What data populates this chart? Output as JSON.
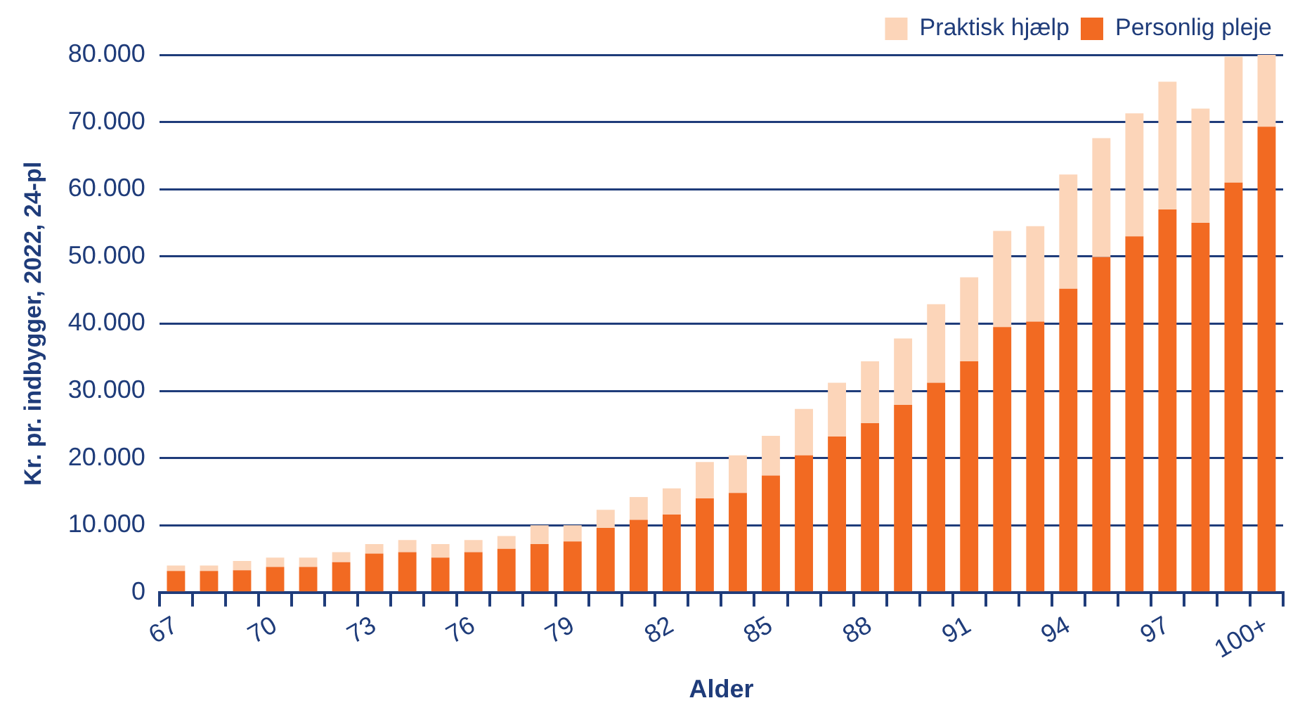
{
  "chart_data": {
    "type": "bar",
    "stacked": true,
    "xlabel": "Alder",
    "ylabel": "Kr. pr. indbygger, 2022, 24-pl",
    "categories": [
      "67",
      null,
      null,
      "70",
      null,
      null,
      "73",
      null,
      null,
      "76",
      null,
      null,
      "79",
      null,
      null,
      "82",
      null,
      null,
      "85",
      null,
      null,
      "88",
      null,
      null,
      "91",
      null,
      null,
      "94",
      null,
      null,
      "97",
      null,
      null,
      "100+"
    ],
    "series": [
      {
        "name": "Personlig pleje",
        "color": "#f26a22",
        "values": [
          3200,
          3200,
          3300,
          3800,
          3800,
          4500,
          5800,
          6000,
          5200,
          6000,
          6500,
          7200,
          7600,
          9600,
          10800,
          11600,
          14000,
          14800,
          17400,
          20400,
          23200,
          25200,
          27900,
          31200,
          34400,
          39500,
          40300,
          45200,
          49900,
          53000,
          57000,
          55000,
          61000,
          69300
        ]
      },
      {
        "name": "Praktisk hjælp",
        "color": "#fcd5b9",
        "values": [
          800,
          800,
          1400,
          1400,
          1400,
          1500,
          1400,
          1800,
          2000,
          1800,
          1900,
          2800,
          2400,
          2700,
          3400,
          3900,
          5400,
          5600,
          5900,
          6900,
          8000,
          9200,
          9900,
          11700,
          12500,
          14300,
          14200,
          17000,
          17700,
          18300,
          19000,
          17000,
          18700,
          10700
        ]
      }
    ],
    "ylim": [
      0,
      80000
    ],
    "yticks": [
      {
        "value": 0,
        "label": "0"
      },
      {
        "value": 10000,
        "label": "10.000"
      },
      {
        "value": 20000,
        "label": "20.000"
      },
      {
        "value": 30000,
        "label": "30.000"
      },
      {
        "value": 40000,
        "label": "40.000"
      },
      {
        "value": 50000,
        "label": "50.000"
      },
      {
        "value": 60000,
        "label": "60.000"
      },
      {
        "value": 70000,
        "label": "70.000"
      },
      {
        "value": 80000,
        "label": "80.000"
      }
    ],
    "grid": "y",
    "legend": "top right"
  }
}
